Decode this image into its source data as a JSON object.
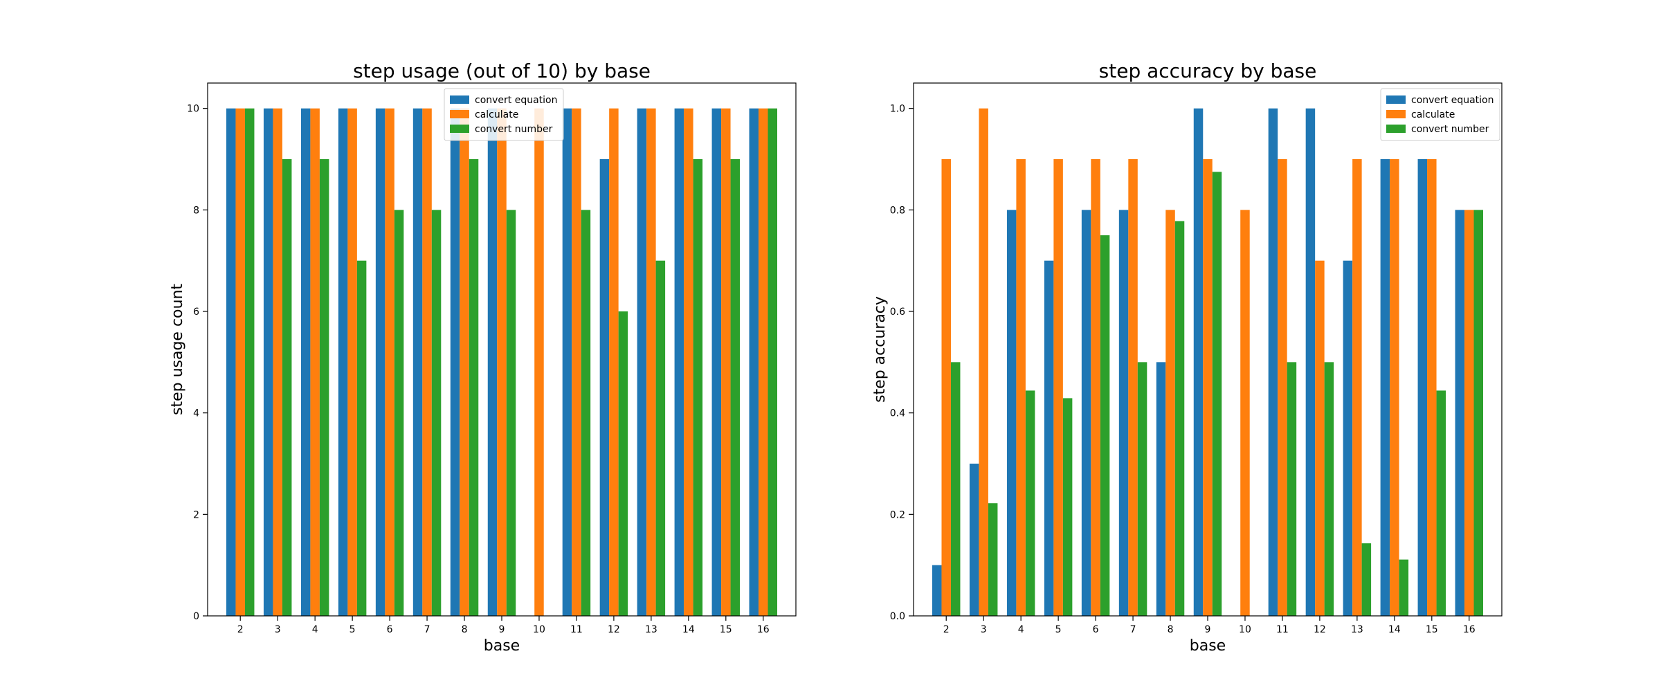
{
  "colors": {
    "convert_equation": "#1f77b4",
    "calculate": "#ff7f0e",
    "convert_number": "#2ca02c"
  },
  "chart_data": [
    {
      "type": "bar",
      "title": "step usage (out of 10) by base",
      "xlabel": "base",
      "ylabel": "step usage count",
      "categories": [
        "2",
        "3",
        "4",
        "5",
        "6",
        "7",
        "8",
        "9",
        "10",
        "11",
        "12",
        "13",
        "14",
        "15",
        "16"
      ],
      "ylim": [
        0,
        10.5
      ],
      "yticks": [
        0,
        2,
        4,
        6,
        8,
        10
      ],
      "ytick_labels": [
        "0",
        "2",
        "4",
        "6",
        "8",
        "10"
      ],
      "legend_position": "top-center",
      "grid": false,
      "series": [
        {
          "name": "convert equation",
          "values": [
            10,
            10,
            10,
            10,
            10,
            10,
            10,
            10,
            0,
            10,
            9,
            10,
            10,
            10,
            10
          ]
        },
        {
          "name": "calculate",
          "values": [
            10,
            10,
            10,
            10,
            10,
            10,
            10,
            10,
            10,
            10,
            10,
            10,
            10,
            10,
            10
          ]
        },
        {
          "name": "convert number",
          "values": [
            10,
            9,
            9,
            7,
            8,
            8,
            9,
            8,
            0,
            8,
            6,
            7,
            9,
            9,
            10
          ]
        }
      ]
    },
    {
      "type": "bar",
      "title": "step accuracy by base",
      "xlabel": "base",
      "ylabel": "step accuracy",
      "categories": [
        "2",
        "3",
        "4",
        "5",
        "6",
        "7",
        "8",
        "9",
        "10",
        "11",
        "12",
        "13",
        "14",
        "15",
        "16"
      ],
      "ylim": [
        0,
        1.05
      ],
      "yticks": [
        0,
        0.2,
        0.4,
        0.6,
        0.8,
        1.0
      ],
      "ytick_labels": [
        "0.0",
        "0.2",
        "0.4",
        "0.6",
        "0.8",
        "1.0"
      ],
      "legend_position": "top-right",
      "grid": false,
      "series": [
        {
          "name": "convert equation",
          "values": [
            0.1,
            0.3,
            0.8,
            0.7,
            0.8,
            0.8,
            0.5,
            1.0,
            0,
            1.0,
            1.0,
            0.7,
            0.9,
            0.9,
            0.8
          ]
        },
        {
          "name": "calculate",
          "values": [
            0.9,
            1.0,
            0.9,
            0.9,
            0.9,
            0.9,
            0.8,
            0.9,
            0.8,
            0.9,
            0.7,
            0.9,
            0.9,
            0.9,
            0.8
          ]
        },
        {
          "name": "convert number",
          "values": [
            0.5,
            0.222,
            0.444,
            0.429,
            0.75,
            0.5,
            0.778,
            0.875,
            0,
            0.5,
            0.5,
            0.143,
            0.111,
            0.444,
            0.8
          ]
        }
      ]
    }
  ]
}
